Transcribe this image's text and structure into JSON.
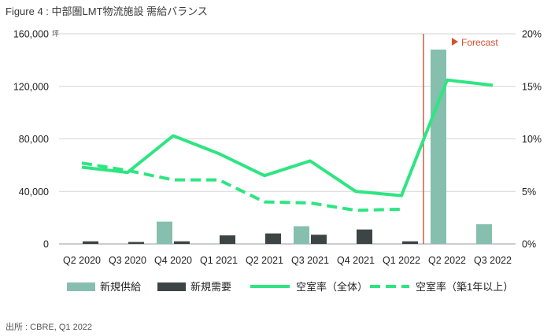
{
  "title": "Figure 4 : 中部圏LMT物流施設 需給バランス",
  "source": "出所 : CBRE, Q1 2022",
  "chart_data": {
    "type": "bar",
    "categories": [
      "Q2 2020",
      "Q3 2020",
      "Q4 2020",
      "Q1 2021",
      "Q2 2021",
      "Q3 2021",
      "Q4 2021",
      "Q1 2022",
      "Q2 2022",
      "Q3 2022"
    ],
    "left_axis": {
      "ticks": [
        0,
        40000,
        80000,
        120000,
        160000
      ],
      "tick_labels": [
        "0",
        "40,000",
        "80,000",
        "120,000",
        "160,000"
      ],
      "unit": "坪",
      "ylim": [
        0,
        160000
      ]
    },
    "right_axis": {
      "ticks": [
        0,
        5,
        10,
        15,
        20
      ],
      "tick_labels": [
        "0%",
        "5%",
        "10%",
        "15%",
        "20%"
      ],
      "ylim": [
        0,
        20
      ]
    },
    "bar_series": [
      {
        "name": "新規供給",
        "color": "#86bfae",
        "values": [
          0,
          0,
          17000,
          0,
          0,
          13500,
          0,
          0,
          148000,
          15000
        ]
      },
      {
        "name": "新規需要",
        "color": "#3d4446",
        "values": [
          2000,
          1500,
          2000,
          6500,
          8000,
          7000,
          11000,
          2000,
          0,
          0
        ]
      }
    ],
    "line_series": [
      {
        "name": "空室率（全体）",
        "color": "#2ee582",
        "style": "solid",
        "values": [
          7.3,
          6.8,
          10.3,
          8.6,
          6.5,
          7.9,
          5.0,
          4.6,
          15.6,
          15.1
        ]
      },
      {
        "name": "空室率（築1年以上）",
        "color": "#2ee582",
        "style": "dashed",
        "values": [
          7.7,
          7.0,
          6.1,
          6.1,
          4.0,
          3.9,
          3.2,
          3.3,
          null,
          null
        ]
      }
    ],
    "forecast_label": "Forecast",
    "forecast_start_after": "Q1 2022",
    "forecast_line_color": "#c8553a",
    "legend_position": "bottom",
    "grid": "horizontal"
  }
}
